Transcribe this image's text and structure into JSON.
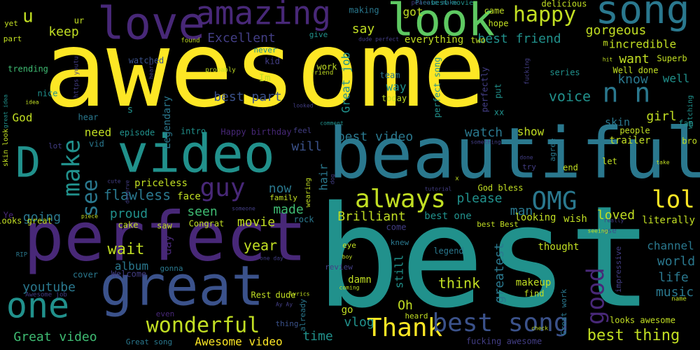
{
  "background": "#000000",
  "palette": {
    "yellow": "#fde725",
    "yellow_green": "#c2df23",
    "green": "#5ec962",
    "mint": "#3fbc73",
    "teal": "#21918c",
    "blue_teal": "#2a788e",
    "blue": "#3b528b",
    "indigo": "#433e85",
    "purple": "#482878",
    "dark_purple": "#440154"
  },
  "words": [
    {
      "text": "awesome",
      "color": "yellow"
    },
    {
      "text": "best",
      "color": "teal"
    },
    {
      "text": "beautiful",
      "color": "blue_teal"
    },
    {
      "text": "perfect",
      "color": "purple"
    },
    {
      "text": "video",
      "color": "teal"
    },
    {
      "text": "great",
      "color": "blue"
    },
    {
      "text": "love",
      "color": "purple"
    },
    {
      "text": "look",
      "color": "green"
    },
    {
      "text": "song",
      "color": "blue_teal"
    },
    {
      "text": "amazing",
      "color": "purple"
    },
    {
      "text": "one",
      "color": "teal"
    },
    {
      "text": "D",
      "color": "teal"
    },
    {
      "text": "happy",
      "color": "yellow_green"
    },
    {
      "text": "Thank",
      "color": "yellow"
    },
    {
      "text": "wonderful",
      "color": "yellow_green"
    },
    {
      "text": "always",
      "color": "yellow_green"
    },
    {
      "text": "OMG",
      "color": "blue_teal"
    },
    {
      "text": "lol",
      "color": "yellow"
    },
    {
      "text": "guy",
      "color": "purple"
    },
    {
      "text": "make",
      "color": "teal"
    },
    {
      "text": "see",
      "color": "blue_teal"
    },
    {
      "text": "n n",
      "color": "blue_teal"
    },
    {
      "text": "good",
      "color": "purple"
    },
    {
      "text": "best song",
      "color": "blue"
    },
    {
      "text": "u",
      "color": "yellow_green"
    },
    {
      "text": "gorgeous",
      "color": "yellow_green"
    },
    {
      "text": "best thing",
      "color": "yellow_green"
    },
    {
      "text": "Great video",
      "color": "mint"
    },
    {
      "text": "Excellent",
      "color": "indigo"
    },
    {
      "text": "keep",
      "color": "yellow_green"
    },
    {
      "text": "best friend",
      "color": "teal"
    },
    {
      "text": "best part",
      "color": "blue"
    },
    {
      "text": "voice",
      "color": "teal"
    },
    {
      "text": "want",
      "color": "yellow_green"
    },
    {
      "text": "know",
      "color": "blue_teal"
    },
    {
      "text": "best video",
      "color": "blue_teal"
    },
    {
      "text": "wait",
      "color": "yellow_green"
    },
    {
      "text": "flawless",
      "color": "blue_teal"
    },
    {
      "text": "year",
      "color": "yellow_green"
    },
    {
      "text": "youtube",
      "color": "blue_teal"
    },
    {
      "text": "think",
      "color": "yellow_green"
    },
    {
      "text": "world",
      "color": "blue_teal"
    },
    {
      "text": "music",
      "color": "blue_teal"
    },
    {
      "text": "life",
      "color": "blue_teal"
    },
    {
      "text": "Brilliant",
      "color": "yellow_green"
    },
    {
      "text": "going",
      "color": "blue_teal"
    },
    {
      "text": "proud",
      "color": "teal"
    },
    {
      "text": "please",
      "color": "teal"
    },
    {
      "text": "girl",
      "color": "yellow_green"
    },
    {
      "text": "loved",
      "color": "yellow_green"
    },
    {
      "text": "now",
      "color": "blue_teal"
    },
    {
      "text": "made",
      "color": "mint"
    },
    {
      "text": "seen",
      "color": "mint"
    },
    {
      "text": "movie",
      "color": "yellow_green"
    },
    {
      "text": "watch",
      "color": "blue_teal"
    },
    {
      "text": "man",
      "color": "blue_teal"
    },
    {
      "text": "greatest",
      "color": "blue_teal"
    },
    {
      "text": "time",
      "color": "teal"
    },
    {
      "text": "Oh",
      "color": "yellow_green"
    },
    {
      "text": "vlog",
      "color": "teal"
    },
    {
      "text": "Awesome video",
      "color": "yellow"
    },
    {
      "text": "channel",
      "color": "blue_teal"
    },
    {
      "text": "God",
      "color": "yellow_green"
    },
    {
      "text": "need",
      "color": "yellow_green"
    },
    {
      "text": "will",
      "color": "blue"
    },
    {
      "text": "say",
      "color": "yellow_green"
    },
    {
      "text": "got",
      "color": "yellow_green"
    },
    {
      "text": "everything",
      "color": "yellow_green"
    },
    {
      "text": "incredible",
      "color": "yellow_green"
    },
    {
      "text": "Great job",
      "color": "teal"
    },
    {
      "text": "hair",
      "color": "blue_teal"
    },
    {
      "text": "way",
      "color": "teal"
    },
    {
      "text": "show",
      "color": "yellow_green"
    },
    {
      "text": "still",
      "color": "teal"
    },
    {
      "text": "day",
      "color": "purple"
    },
    {
      "text": "album",
      "color": "blue_teal"
    },
    {
      "text": "well",
      "color": "teal"
    },
    {
      "text": "skin",
      "color": "blue_teal"
    },
    {
      "text": "Legendary",
      "color": "blue_teal"
    },
    {
      "text": "best one",
      "color": "teal"
    },
    {
      "text": "looking",
      "color": "yellow_green"
    },
    {
      "text": "wish",
      "color": "yellow_green"
    },
    {
      "text": "makeup",
      "color": "yellow_green"
    },
    {
      "text": "literally",
      "color": "yellow_green"
    },
    {
      "text": "priceless",
      "color": "yellow_green"
    },
    {
      "text": "damn",
      "color": "yellow_green"
    },
    {
      "text": "go",
      "color": "yellow_green"
    },
    {
      "text": "face",
      "color": "yellow_green"
    },
    {
      "text": "trailer",
      "color": "yellow_green"
    },
    {
      "text": "thought",
      "color": "yellow_green"
    },
    {
      "text": "Happy birthday",
      "color": "purple"
    },
    {
      "text": "episode",
      "color": "teal"
    },
    {
      "text": "trending",
      "color": "mint"
    },
    {
      "text": "watched",
      "color": "blue"
    },
    {
      "text": "cake",
      "color": "yellow_green"
    },
    {
      "text": "Well done",
      "color": "yellow_green"
    },
    {
      "text": "Superb",
      "color": "yellow_green"
    },
    {
      "text": "intro",
      "color": "teal"
    },
    {
      "text": "Im",
      "color": "yellow_green"
    },
    {
      "text": "s",
      "color": "teal"
    },
    {
      "text": "put",
      "color": "teal"
    },
    {
      "text": "xx",
      "color": "teal"
    },
    {
      "text": "today",
      "color": "yellow_green"
    },
    {
      "text": "perfectly",
      "color": "indigo"
    },
    {
      "text": "perfect song",
      "color": "teal"
    },
    {
      "text": "team",
      "color": "blue_teal"
    },
    {
      "text": "give",
      "color": "teal"
    },
    {
      "text": "two",
      "color": "yellow_green"
    },
    {
      "text": "hope",
      "color": "yellow_green"
    },
    {
      "text": "came",
      "color": "yellow_green"
    },
    {
      "text": "delicious",
      "color": "yellow_green"
    },
    {
      "text": "making",
      "color": "blue_teal"
    },
    {
      "text": "kid",
      "color": "indigo"
    },
    {
      "text": "work",
      "color": "yellow_green"
    },
    {
      "text": "series",
      "color": "teal"
    },
    {
      "text": "never",
      "color": "teal"
    },
    {
      "text": "Ye",
      "color": "purple"
    },
    {
      "text": "lot",
      "color": "indigo"
    },
    {
      "text": "vid",
      "color": "blue_teal"
    },
    {
      "text": "hear",
      "color": "blue_teal"
    },
    {
      "text": "nice",
      "color": "teal"
    },
    {
      "text": "ur",
      "color": "yellow_green"
    },
    {
      "text": "yet",
      "color": "yellow_green"
    },
    {
      "text": "part",
      "color": "yellow_green"
    },
    {
      "text": "m",
      "color": "yellow_green"
    },
    {
      "text": "bro",
      "color": "yellow_green"
    },
    {
      "text": "fan",
      "color": "teal"
    },
    {
      "text": "people",
      "color": "yellow_green"
    },
    {
      "text": "let",
      "color": "yellow_green"
    },
    {
      "text": "end",
      "color": "yellow_green"
    },
    {
      "text": "try",
      "color": "indigo"
    },
    {
      "text": "agree",
      "color": "blue_teal"
    },
    {
      "text": "God bless",
      "color": "yellow_green"
    },
    {
      "text": "saw",
      "color": "yellow_green"
    },
    {
      "text": "family",
      "color": "yellow_green"
    },
    {
      "text": "Congrat",
      "color": "yellow_green"
    },
    {
      "text": "rock",
      "color": "blue_teal"
    },
    {
      "text": "come",
      "color": "indigo"
    },
    {
      "text": "eye",
      "color": "yellow_green"
    },
    {
      "text": "knew",
      "color": "blue_teal"
    },
    {
      "text": "review",
      "color": "indigo"
    },
    {
      "text": "heard",
      "color": "yellow_green"
    },
    {
      "text": "find",
      "color": "yellow_green"
    },
    {
      "text": "legend",
      "color": "blue_teal"
    },
    {
      "text": "use",
      "color": "blue"
    },
    {
      "text": "impressive",
      "color": "indigo"
    },
    {
      "text": "cover",
      "color": "blue_teal"
    },
    {
      "text": "Welcome",
      "color": "indigo"
    },
    {
      "text": "gonna",
      "color": "blue_teal"
    },
    {
      "text": "even",
      "color": "purple"
    },
    {
      "text": "Rest",
      "color": "yellow_green"
    },
    {
      "text": "dude",
      "color": "yellow_green"
    },
    {
      "text": "thing",
      "color": "blue"
    },
    {
      "text": "already",
      "color": "blue_teal"
    },
    {
      "text": "looks great",
      "color": "yellow_green"
    },
    {
      "text": "Great song",
      "color": "blue_teal"
    },
    {
      "text": "looks awesome",
      "color": "yellow_green"
    },
    {
      "text": "fucking awesome",
      "color": "indigo"
    },
    {
      "text": "Great work",
      "color": "blue_teal"
    },
    {
      "text": "best Best",
      "color": "yellow_green"
    },
    {
      "text": "feel",
      "color": "indigo"
    },
    {
      "text": "skin look",
      "color": "yellow_green"
    },
    {
      "text": "RIP",
      "color": "blue_teal"
    },
    {
      "text": "Awesome job",
      "color": "indigo"
    },
    {
      "text": "peace",
      "color": "indigo"
    },
    {
      "text": "best movie",
      "color": "teal"
    },
    {
      "text": "Please make",
      "color": "blue_teal"
    },
    {
      "text": "https youtu",
      "color": "indigo"
    },
    {
      "text": "dude perfect",
      "color": "indigo"
    },
    {
      "text": "found",
      "color": "yellow_green"
    },
    {
      "text": "probably",
      "color": "yellow_green"
    },
    {
      "text": "friend",
      "color": "yellow_green"
    },
    {
      "text": "heart",
      "color": "indigo"
    },
    {
      "text": "idea",
      "color": "yellow_green"
    },
    {
      "text": "great idea",
      "color": "teal"
    },
    {
      "text": "comment",
      "color": "teal"
    },
    {
      "text": "looked",
      "color": "indigo"
    },
    {
      "text": "something",
      "color": "indigo"
    },
    {
      "text": "fucking",
      "color": "indigo"
    },
    {
      "text": "wearing",
      "color": "yellow_green"
    },
    {
      "text": "tutorial",
      "color": "indigo"
    },
    {
      "text": "cute",
      "color": "indigo"
    },
    {
      "text": "deserve",
      "color": "indigo"
    },
    {
      "text": "someone",
      "color": "indigo"
    },
    {
      "text": "piece",
      "color": "yellow_green"
    },
    {
      "text": "seeing",
      "color": "yellow_green"
    },
    {
      "text": "really",
      "color": "indigo"
    },
    {
      "text": "done",
      "color": "indigo"
    },
    {
      "text": "take",
      "color": "yellow_green"
    },
    {
      "text": "one day",
      "color": "indigo"
    },
    {
      "text": "boy",
      "color": "yellow_green"
    },
    {
      "text": "coming",
      "color": "yellow_green"
    },
    {
      "text": "lyrics",
      "color": "yellow_green"
    },
    {
      "text": "Ay Ay",
      "color": "indigo"
    },
    {
      "text": "check",
      "color": "yellow_green"
    },
    {
      "text": "name",
      "color": "yellow_green"
    },
    {
      "text": "watching",
      "color": "teal"
    },
    {
      "text": "hit",
      "color": "yellow_green"
    },
    {
      "text": "x",
      "color": "yellow_green"
    },
    {
      "text": "dog",
      "color": "indigo"
    }
  ]
}
